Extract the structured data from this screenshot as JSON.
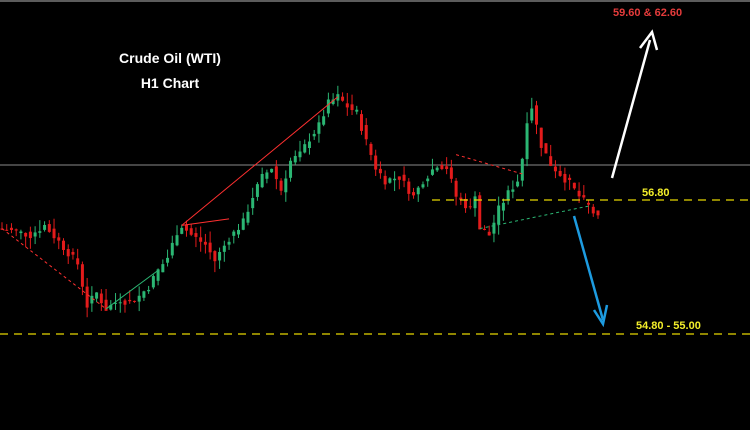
{
  "chart_data": {
    "type": "candlestick",
    "title": "Crude Oil (WTI)",
    "subtitle": "H1 Chart",
    "colors": {
      "background": "#000000",
      "bull_candle": "#2bb673",
      "bear_candle": "#e31b1b",
      "level_line": "#e6d600",
      "level_label": "#f4ef2a",
      "target_label": "#e53b3b",
      "up_arrow": "#ffffff",
      "down_arrow": "#1d9be0",
      "current_price_line": "#8a8a8a"
    },
    "y_range": [
      54.5,
      62.9
    ],
    "current_price": 57.8,
    "close_points": [
      [
        0,
        57.5
      ],
      [
        3,
        57.4
      ],
      [
        6,
        57.3
      ],
      [
        9,
        57.6
      ],
      [
        12,
        57.1
      ],
      [
        16,
        56.4
      ],
      [
        18,
        55.1
      ],
      [
        20,
        55.5
      ],
      [
        22,
        55.0
      ],
      [
        25,
        55.3
      ],
      [
        27,
        55.2
      ],
      [
        29,
        55.4
      ],
      [
        31,
        55.7
      ],
      [
        33,
        56.2
      ],
      [
        35,
        56.6
      ],
      [
        36,
        57.0
      ],
      [
        37,
        57.4
      ],
      [
        38,
        57.6
      ],
      [
        40,
        57.3
      ],
      [
        43,
        57.0
      ],
      [
        45,
        56.5
      ],
      [
        48,
        57.2
      ],
      [
        51,
        57.7
      ],
      [
        53,
        58.5
      ],
      [
        55,
        59.1
      ],
      [
        57,
        59.4
      ],
      [
        59,
        58.7
      ],
      [
        61,
        59.6
      ],
      [
        63,
        59.8
      ],
      [
        65,
        60.3
      ],
      [
        67,
        60.7
      ],
      [
        69,
        61.4
      ],
      [
        71,
        61.6
      ],
      [
        73,
        61.3
      ],
      [
        75,
        61.1
      ],
      [
        77,
        60.2
      ],
      [
        79,
        59.4
      ],
      [
        81,
        59.0
      ],
      [
        84,
        59.1
      ],
      [
        87,
        58.5
      ],
      [
        89,
        59.0
      ],
      [
        92,
        59.5
      ],
      [
        94,
        59.4
      ],
      [
        96,
        58.5
      ],
      [
        99,
        58.1
      ],
      [
        100,
        58.6
      ],
      [
        101,
        57.5
      ],
      [
        103,
        57.3
      ],
      [
        105,
        58.1
      ],
      [
        107,
        58.6
      ],
      [
        109,
        59.0
      ],
      [
        110,
        59.7
      ],
      [
        111,
        60.9
      ],
      [
        112,
        61.3
      ],
      [
        114,
        60.1
      ],
      [
        116,
        59.5
      ],
      [
        118,
        59.2
      ],
      [
        120,
        58.9
      ],
      [
        122,
        58.5
      ],
      [
        124,
        58.2
      ],
      [
        126,
        57.8
      ]
    ],
    "levels": [
      {
        "value": 56.8,
        "label": "56.80"
      },
      {
        "value": 54.8,
        "label": "54.80 - 55.00"
      }
    ],
    "targets": [
      {
        "direction": "up",
        "label": "59.60 & 62.60"
      },
      {
        "direction": "down",
        "label": "54.80 - 55.00"
      }
    ]
  }
}
